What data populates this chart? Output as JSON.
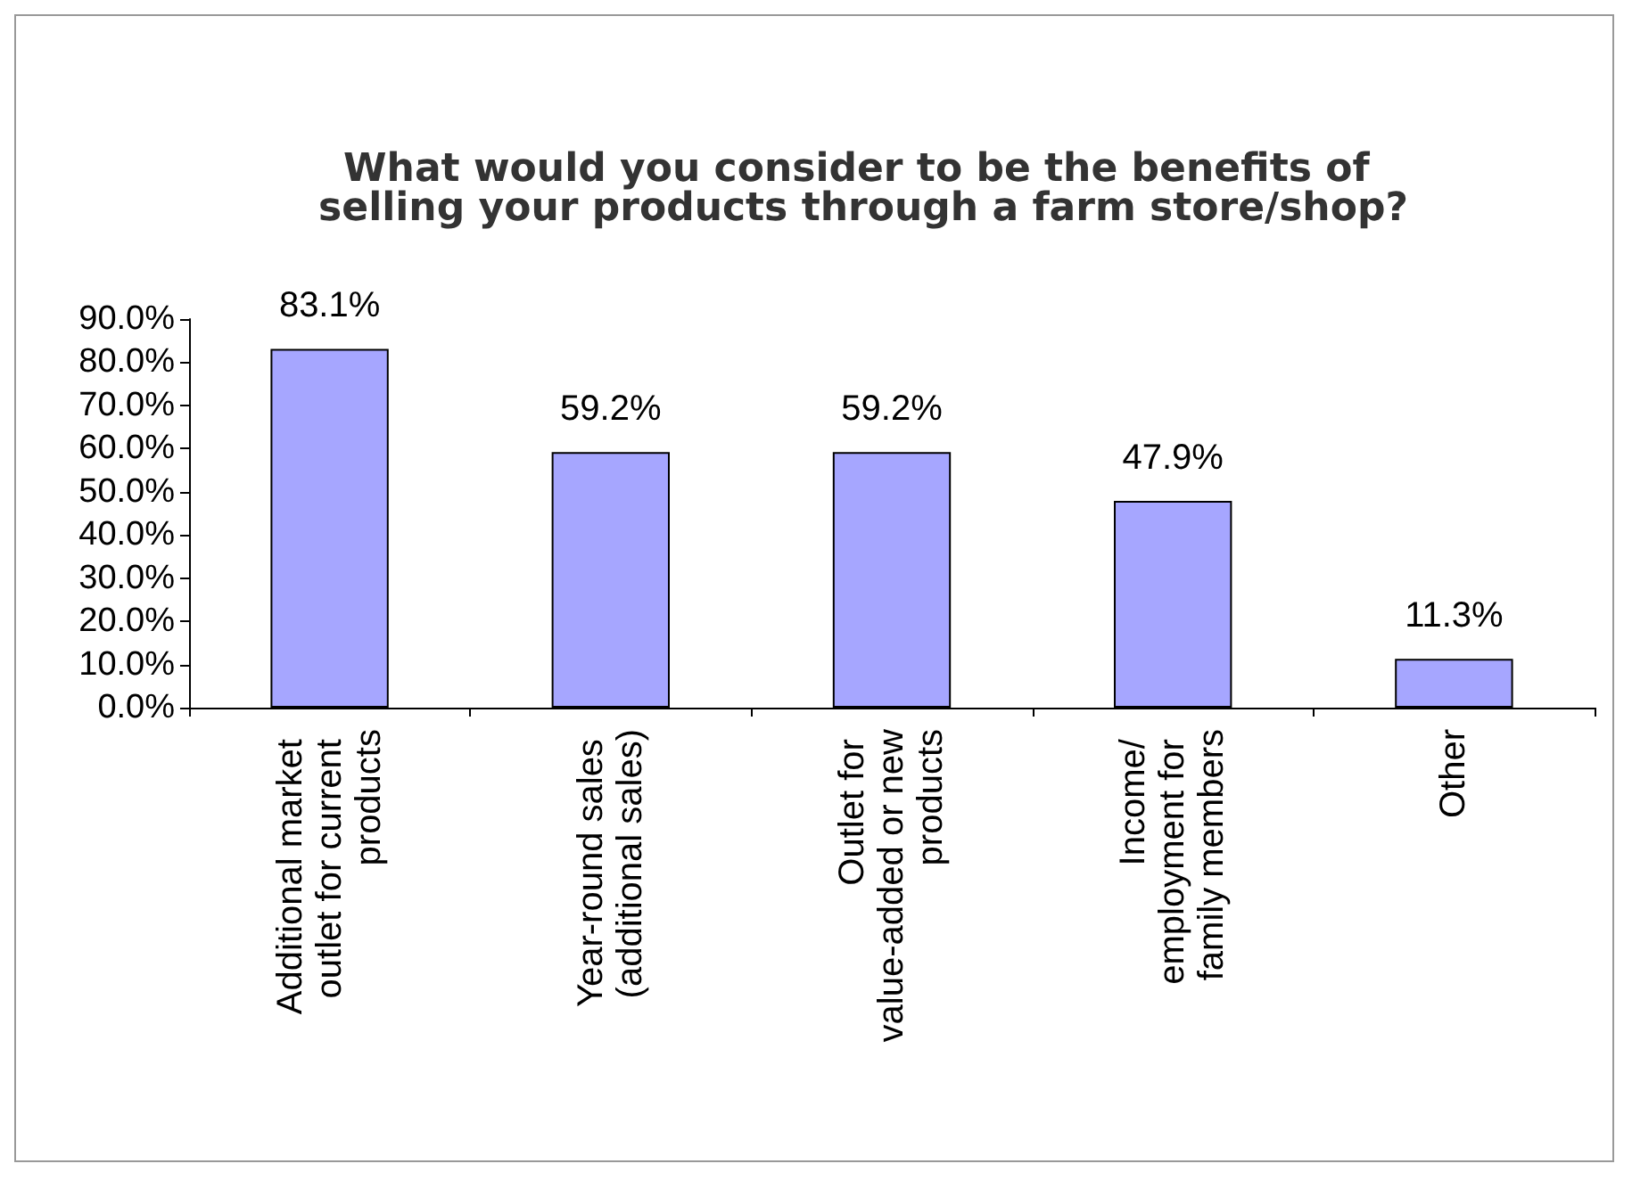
{
  "chart_data": {
    "type": "bar",
    "title": "What would you consider to be the benefits of selling your products through a farm store/shop?",
    "categories": [
      "Additional market outlet for current products",
      "Year-round sales (additional sales)",
      "Outlet for value-added or new products",
      "Income/ employment for family members",
      "Other"
    ],
    "values": [
      83.1,
      59.2,
      59.2,
      47.9,
      11.3
    ],
    "value_labels": [
      "83.1%",
      "59.2%",
      "59.2%",
      "47.9%",
      "11.3%"
    ],
    "color": "#a6a6ff",
    "ylim": [
      0,
      90
    ],
    "yticks": [
      {
        "value": 0,
        "label": "0.0%"
      },
      {
        "value": 10,
        "label": "10.0%"
      },
      {
        "value": 20,
        "label": "20.0%"
      },
      {
        "value": 30,
        "label": "30.0%"
      },
      {
        "value": 40,
        "label": "40.0%"
      },
      {
        "value": 50,
        "label": "50.0%"
      },
      {
        "value": 60,
        "label": "60.0%"
      },
      {
        "value": 70,
        "label": "70.0%"
      },
      {
        "value": 80,
        "label": "80.0%"
      },
      {
        "value": 90,
        "label": "90.0%"
      }
    ],
    "grid": false
  }
}
